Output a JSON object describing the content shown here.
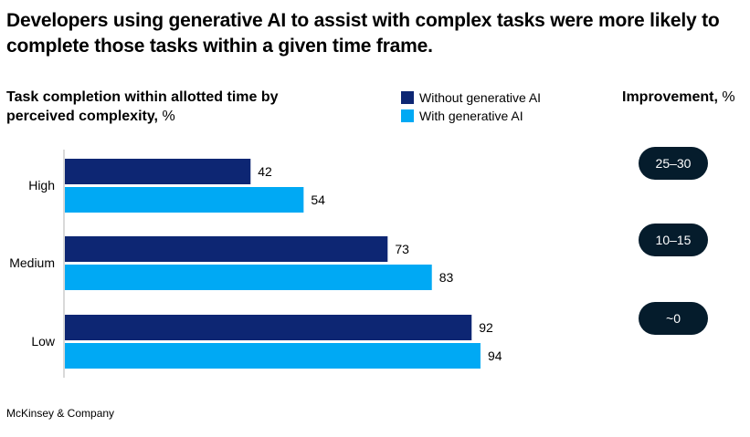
{
  "title": "Developers using generative AI to assist with complex tasks were more likely to complete those tasks within a given time frame.",
  "source": "McKinsey & Company",
  "colors": {
    "without_ai": "#0d2673",
    "with_ai": "#00a9f4",
    "pill_bg": "#051c2c",
    "axis": "#b3b3b3"
  },
  "chart_data": {
    "type": "bar",
    "orientation": "horizontal",
    "title": "Task completion within allotted time by perceived complexity,",
    "title_main": "Task completion within allotted time by perceived complexity,",
    "title_unit": "%",
    "categories": [
      "High",
      "Medium",
      "Low"
    ],
    "series": [
      {
        "name": "Without generative AI",
        "values": [
          42,
          73,
          92
        ]
      },
      {
        "name": "With generative AI",
        "values": [
          54,
          83,
          94
        ]
      }
    ],
    "xlim": [
      0,
      100
    ],
    "grid": false,
    "legend": "top-center",
    "improvement": {
      "label": "Improvement,",
      "unit": "%",
      "values": [
        "25–30",
        "10–15",
        "~0"
      ]
    }
  }
}
